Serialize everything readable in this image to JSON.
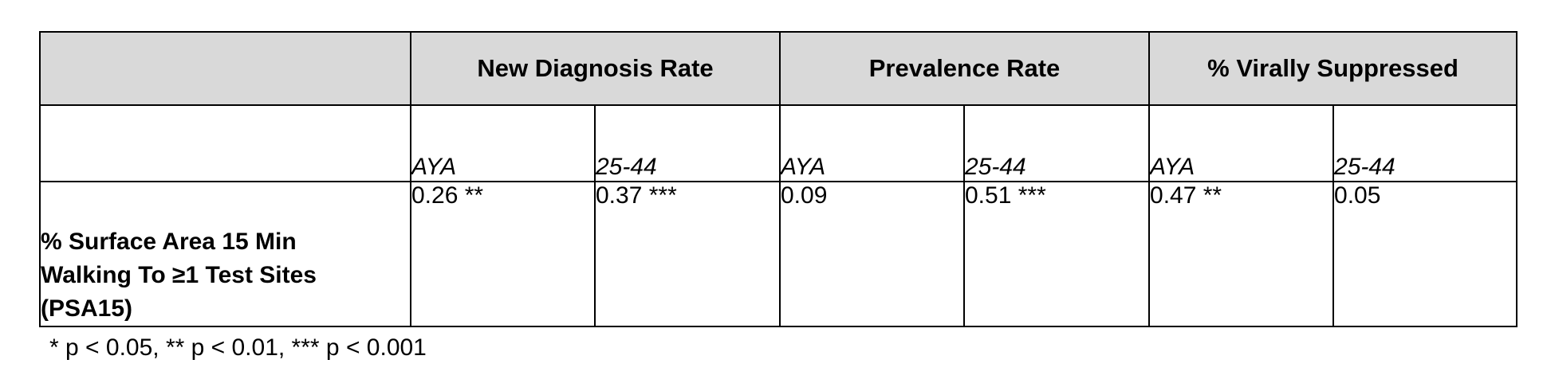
{
  "table": {
    "groups": [
      "New Diagnosis Rate",
      "Prevalence Rate",
      "% Virally Suppressed"
    ],
    "subheaders": [
      "AYA",
      "25-44",
      "AYA",
      "25-44",
      "AYA",
      "25-44"
    ],
    "row": {
      "label_lines": [
        "% Surface Area 15 Min",
        "Walking To ≥1 Test Sites",
        "(PSA15)"
      ],
      "values": [
        "0.26 **",
        "0.37 ***",
        "0.09",
        "0.51 ***",
        "0.47 **",
        "0.05"
      ]
    }
  },
  "footnote": "* p < 0.05, ** p < 0.01, *** p < 0.001"
}
